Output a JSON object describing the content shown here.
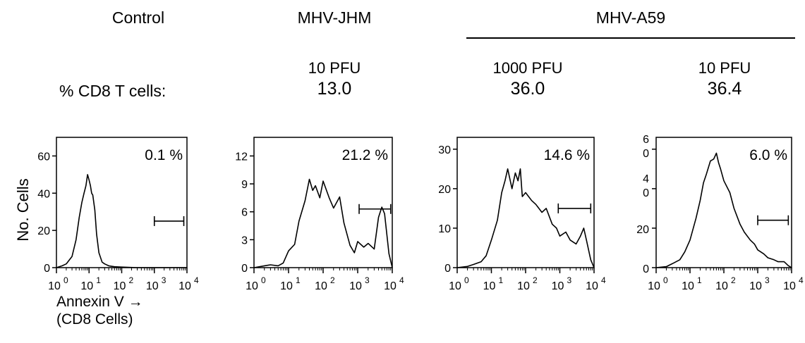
{
  "header": {
    "columns": [
      {
        "group": "Control",
        "dose": "",
        "value": ""
      },
      {
        "group": "MHV-JHM",
        "dose": "10 PFU",
        "value": "13.0"
      },
      {
        "group": "",
        "dose": "1000 PFU",
        "value": "36.0"
      },
      {
        "group": "",
        "dose": "10 PFU",
        "value": "36.4"
      }
    ],
    "a59_group": "MHV-A59",
    "pct_label": "% CD8 T cells:"
  },
  "axes": {
    "ylabel": "No. Cells",
    "xlabel_line1": "Annexin V  →",
    "xlabel_line2": "(CD8 Cells)"
  },
  "chart_data": [
    {
      "type": "area",
      "title": "Control",
      "xscale": "log",
      "xlim": [
        1,
        10000
      ],
      "xticks": [
        "10",
        "10",
        "10",
        "10",
        "10"
      ],
      "xtick_exponents": [
        "0",
        "1",
        "2",
        "3",
        "4"
      ],
      "ylim": [
        0,
        70
      ],
      "yticks": [
        "0",
        "20",
        "40",
        "60"
      ],
      "ytick_values": [
        0,
        20,
        40,
        60
      ],
      "annotation": "0.1 %",
      "gate": [
        1000,
        8000
      ],
      "gate_y": 25,
      "x": [
        1,
        1.5,
        2,
        3,
        4,
        5,
        6,
        7,
        8,
        9,
        10,
        11,
        12,
        13,
        15,
        17,
        20,
        25,
        30,
        40,
        60,
        100,
        300,
        1000,
        10000
      ],
      "y": [
        0,
        1,
        2,
        6,
        15,
        27,
        35,
        40,
        44,
        50,
        47,
        44,
        40,
        39,
        31,
        18,
        8,
        3,
        2,
        1,
        0.5,
        0.3,
        0,
        0,
        0
      ]
    },
    {
      "type": "area",
      "title": "MHV-JHM 10 PFU",
      "xscale": "log",
      "xlim": [
        1,
        10000
      ],
      "xticks": [
        "10",
        "10",
        "10",
        "10",
        "10"
      ],
      "xtick_exponents": [
        "0",
        "1",
        "2",
        "3",
        "4"
      ],
      "ylim": [
        0,
        14
      ],
      "yticks": [
        "0",
        "3",
        "6",
        "9",
        "12"
      ],
      "ytick_values": [
        0,
        3,
        6,
        9,
        12
      ],
      "annotation": "21.2 %",
      "gate": [
        1100,
        9000
      ],
      "gate_y": 6.3,
      "x": [
        1,
        2,
        3,
        5,
        7,
        10,
        15,
        20,
        30,
        40,
        50,
        60,
        80,
        100,
        150,
        200,
        300,
        400,
        600,
        800,
        1000,
        1500,
        2000,
        3000,
        4000,
        5000,
        6000,
        8000,
        10000
      ],
      "y": [
        0,
        0.2,
        0.3,
        0.2,
        0.5,
        1.8,
        2.5,
        5,
        7.2,
        9.5,
        8.3,
        8.8,
        7.5,
        9.3,
        7.5,
        6.4,
        7.6,
        4.8,
        2.4,
        1.6,
        2.8,
        2.2,
        2.6,
        2.0,
        5.4,
        6.5,
        5.8,
        1.5,
        0
      ]
    },
    {
      "type": "area",
      "title": "MHV-A59 1000 PFU",
      "xscale": "log",
      "xlim": [
        1,
        10000
      ],
      "xticks": [
        "10",
        "10",
        "10",
        "10",
        "10"
      ],
      "xtick_exponents": [
        "0",
        "1",
        "2",
        "3",
        "4"
      ],
      "ylim": [
        0,
        33
      ],
      "yticks": [
        "0",
        "10",
        "20",
        "30"
      ],
      "ytick_values": [
        0,
        10,
        20,
        30
      ],
      "annotation": "14.6 %",
      "gate": [
        900,
        8000
      ],
      "gate_y": 15,
      "x": [
        1,
        2,
        3,
        5,
        7,
        10,
        15,
        20,
        25,
        30,
        40,
        50,
        60,
        70,
        80,
        100,
        150,
        200,
        300,
        400,
        600,
        800,
        1000,
        1500,
        2000,
        3000,
        4000,
        5000,
        6000,
        8000,
        10000
      ],
      "y": [
        0,
        0.3,
        0.8,
        1.5,
        3,
        7,
        12,
        19,
        22,
        25,
        20,
        24,
        22,
        25,
        18,
        19,
        17,
        16,
        14,
        15,
        11,
        10,
        8,
        9,
        7,
        6,
        8,
        10,
        7,
        2,
        0
      ]
    },
    {
      "type": "area",
      "title": "MHV-A59 10 PFU",
      "xscale": "log",
      "xlim": [
        1,
        10000
      ],
      "xticks": [
        "10",
        "10",
        "10",
        "10",
        "10"
      ],
      "xtick_exponents": [
        "0",
        "1",
        "2",
        "3",
        "4"
      ],
      "ylim": [
        0,
        66
      ],
      "yticks": [
        "0",
        "20",
        "40",
        "60"
      ],
      "ytick_values": [
        0,
        20,
        40,
        60
      ],
      "ytick_stacked": [
        [
          "0"
        ],
        [
          "20"
        ],
        [
          "4",
          "0"
        ],
        [
          "6",
          "0"
        ]
      ],
      "annotation": "6.0 %",
      "gate": [
        1000,
        8000
      ],
      "gate_y": 24,
      "x": [
        1,
        2,
        3,
        5,
        7,
        10,
        15,
        20,
        25,
        30,
        40,
        50,
        60,
        70,
        80,
        100,
        150,
        200,
        300,
        400,
        600,
        800,
        1000,
        1500,
        2000,
        3000,
        4000,
        6000,
        8000,
        10000
      ],
      "y": [
        0,
        0.5,
        2,
        4,
        8,
        14,
        25,
        34,
        43,
        47,
        54,
        55,
        58,
        53,
        50,
        44,
        38,
        30,
        22,
        18,
        14,
        12,
        9,
        7,
        5,
        4,
        3,
        3,
        1,
        0
      ]
    }
  ]
}
